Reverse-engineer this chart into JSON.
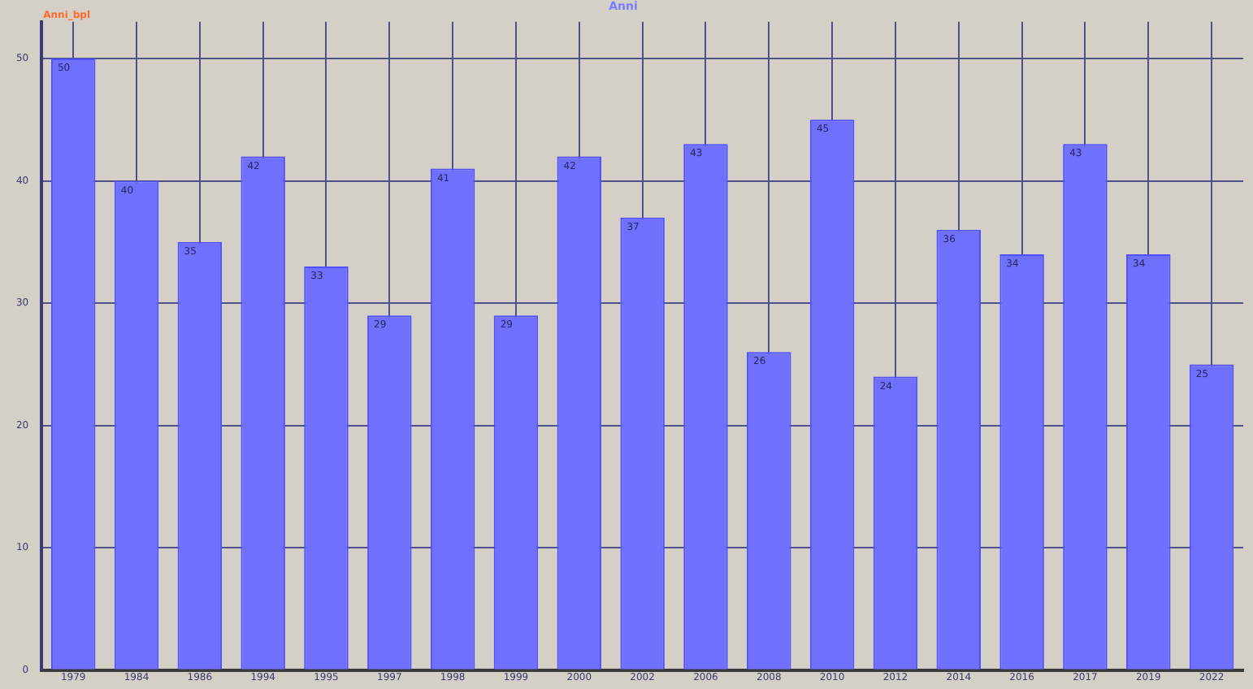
{
  "chart_data": {
    "type": "bar",
    "title": "Anni",
    "ylabel": "Anni_bpl",
    "categories": [
      "1979",
      "1984",
      "1986",
      "1994",
      "1995",
      "1997",
      "1998",
      "1999",
      "2000",
      "2002",
      "2006",
      "2008",
      "2010",
      "2012",
      "2014",
      "2016",
      "2017",
      "2019",
      "2022"
    ],
    "values": [
      50,
      40,
      35,
      42,
      33,
      29,
      41,
      29,
      42,
      37,
      43,
      26,
      45,
      24,
      36,
      34,
      43,
      34,
      25
    ],
    "color": "#7070ff",
    "ylim": [
      0,
      53
    ],
    "yticks": [
      0,
      10,
      20,
      30,
      40,
      50
    ],
    "grid": true,
    "data_labels": true
  }
}
